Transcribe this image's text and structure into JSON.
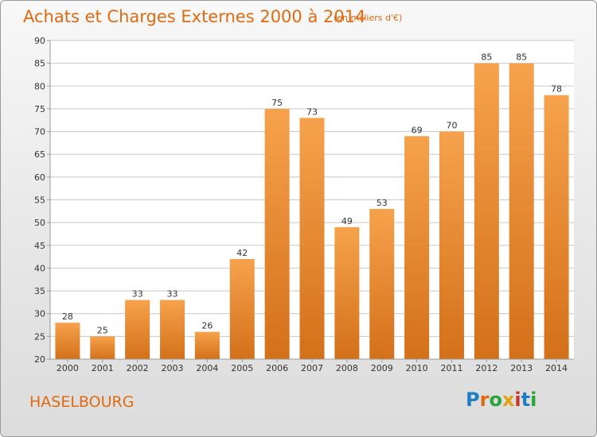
{
  "header": {
    "title": "Achats et Charges Externes 2000 à 2014",
    "unit": "(en milliers d'€)"
  },
  "footer": {
    "place": "HASELBOURG",
    "logo_text": "Proxiti"
  },
  "colors": {
    "accent": "#e06a10",
    "bar_light": "#f6a24c",
    "bar_dark": "#d4701a",
    "logo_letters": [
      "#1f7fc4",
      "#e06a10",
      "#2aa33a",
      "#e0a010",
      "#c8342a",
      "#1f7fc4",
      "#2aa33a"
    ]
  },
  "chart_data": {
    "type": "bar",
    "categories": [
      "2000",
      "2001",
      "2002",
      "2003",
      "2004",
      "2005",
      "2006",
      "2007",
      "2008",
      "2009",
      "2010",
      "2011",
      "2012",
      "2013",
      "2014"
    ],
    "values": [
      28,
      25,
      33,
      33,
      26,
      42,
      75,
      73,
      49,
      53,
      69,
      70,
      85,
      85,
      78
    ],
    "ylim": [
      20,
      90
    ],
    "yticks": [
      20,
      25,
      30,
      35,
      40,
      45,
      50,
      55,
      60,
      65,
      70,
      75,
      80,
      85,
      90
    ],
    "grid": true,
    "legend": "none"
  }
}
